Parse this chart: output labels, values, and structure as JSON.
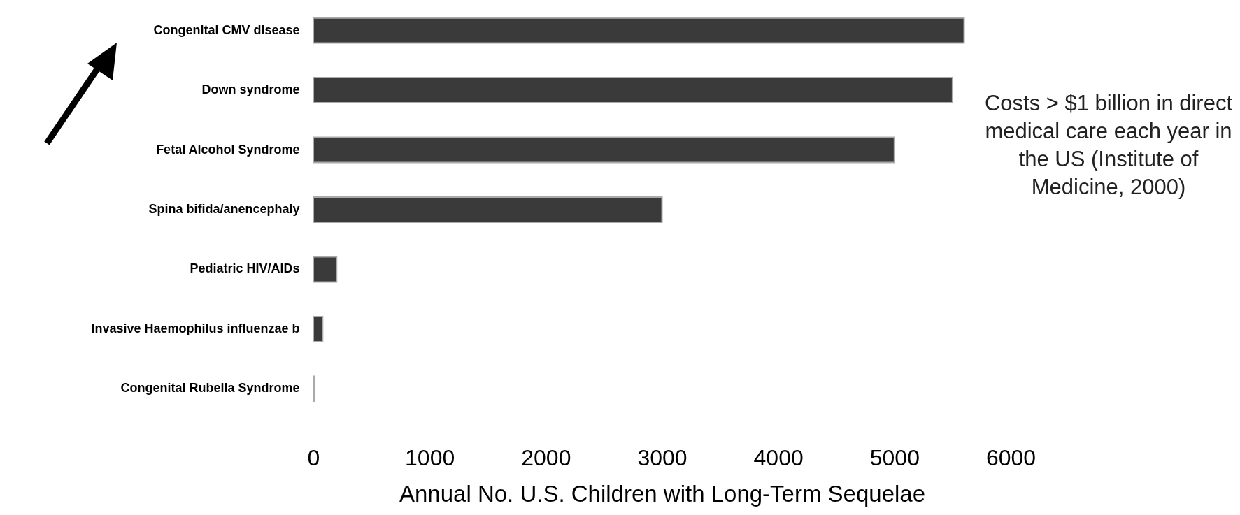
{
  "chart_data": {
    "type": "bar",
    "orientation": "horizontal",
    "categories": [
      "Congenital CMV disease",
      "Down syndrome",
      "Fetal Alcohol Syndrome",
      "Spina bifida/anencephaly",
      "Pediatric HIV/AIDs",
      "Invasive Haemophilus influenzae b",
      "Congenital Rubella Syndrome"
    ],
    "values": [
      5600,
      5500,
      5000,
      3000,
      200,
      80,
      10
    ],
    "color": "#3a3a3a",
    "xlabel": "Annual No. U.S. Children with Long-Term Sequelae",
    "xlim": [
      0,
      6000
    ],
    "xticks": [
      0,
      1000,
      2000,
      3000,
      4000,
      5000,
      6000
    ],
    "grid": false,
    "annotations": [
      "Costs > $1 billion in direct medical care each year in the US (Institute of Medicine, 2000)"
    ]
  }
}
